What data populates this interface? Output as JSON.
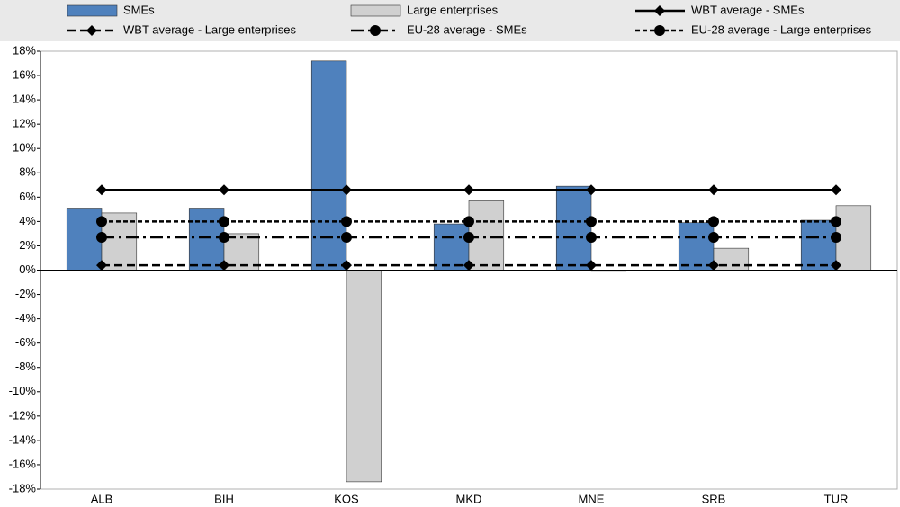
{
  "chart_data": {
    "type": "bar",
    "categories": [
      "ALB",
      "BIH",
      "KOS",
      "MKD",
      "MNE",
      "SRB",
      "TUR"
    ],
    "series": [
      {
        "name": "SMEs",
        "kind": "bar",
        "color": "#4f81bd",
        "values": [
          5.1,
          5.1,
          17.2,
          3.8,
          6.9,
          3.9,
          4.1
        ]
      },
      {
        "name": "Large enterprises",
        "kind": "bar",
        "color": "#d0d0d0",
        "values": [
          4.7,
          3.0,
          -17.4,
          5.7,
          -0.1,
          1.8,
          5.3
        ]
      },
      {
        "name": "WBT average - SMEs",
        "kind": "line",
        "color": "#000000",
        "dash": "solid",
        "marker": "diamond",
        "values": [
          6.6,
          6.6,
          6.6,
          6.6,
          6.6,
          6.6,
          6.6
        ]
      },
      {
        "name": "WBT average - Large enterprises",
        "kind": "line",
        "color": "#000000",
        "dash": "dashed",
        "marker": "diamond",
        "values": [
          0.4,
          0.4,
          0.4,
          0.4,
          0.4,
          0.4,
          0.4
        ]
      },
      {
        "name": "EU-28 average - SMEs",
        "kind": "line",
        "color": "#000000",
        "dash": "dashdot",
        "marker": "circle",
        "values": [
          2.7,
          2.7,
          2.7,
          2.7,
          2.7,
          2.7,
          2.7
        ]
      },
      {
        "name": "EU-28 average - Large enterprises",
        "kind": "line",
        "color": "#000000",
        "dash": "dotted",
        "marker": "circle",
        "values": [
          4.0,
          4.0,
          4.0,
          4.0,
          4.0,
          4.0,
          4.0
        ]
      }
    ],
    "ylim": [
      -18,
      18
    ],
    "yticks": [
      {
        "value": -18,
        "label": "-18%"
      },
      {
        "value": -16,
        "label": "-16%"
      },
      {
        "value": -14,
        "label": "-14%"
      },
      {
        "value": -12,
        "label": "-12%"
      },
      {
        "value": -10,
        "label": "-10%"
      },
      {
        "value": -8,
        "label": "-8%"
      },
      {
        "value": -6,
        "label": "-6%"
      },
      {
        "value": -4,
        "label": "-4%"
      },
      {
        "value": -2,
        "label": "-2%"
      },
      {
        "value": 0,
        "label": "0%"
      },
      {
        "value": 2,
        "label": "2%"
      },
      {
        "value": 4,
        "label": "4%"
      },
      {
        "value": 6,
        "label": "6%"
      },
      {
        "value": 8,
        "label": "8%"
      },
      {
        "value": 10,
        "label": "10%"
      },
      {
        "value": 12,
        "label": "12%"
      },
      {
        "value": 14,
        "label": "14%"
      },
      {
        "value": 16,
        "label": "16%"
      },
      {
        "value": 18,
        "label": "18%"
      }
    ],
    "grid": false
  }
}
